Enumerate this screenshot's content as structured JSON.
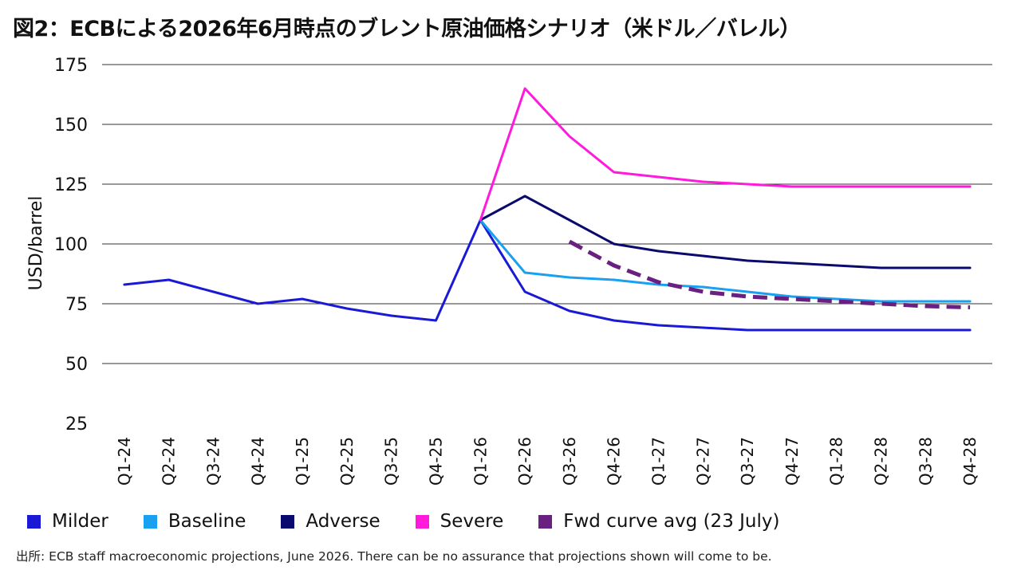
{
  "title": "図2：ECBによる2026年6月時点のブレント原油価格シナリオ（米ドル／バレル）",
  "source": "出所: ECB staff macroeconomic projections, June 2026. There can be no assurance that projections shown will come to be.",
  "colors": {
    "milder": "#1a1ad6",
    "baseline": "#1aa0f0",
    "adverse": "#0a0a6e",
    "severe": "#ff1adc",
    "fwd": "#6a2080",
    "grid": "#333333"
  },
  "chart_data": {
    "type": "line",
    "ylabel": "USD/barrel",
    "xlabel": "",
    "ylim": [
      25,
      175
    ],
    "yticks": [
      "175",
      "150",
      "125",
      "100",
      "75",
      "50",
      "25"
    ],
    "grid": "horizontal",
    "legend_position": "bottom",
    "categories": [
      "Q1-24",
      "Q2-24",
      "Q3-24",
      "Q4-24",
      "Q1-25",
      "Q2-25",
      "Q3-25",
      "Q4-25",
      "Q1-26",
      "Q2-26",
      "Q3-26",
      "Q4-26",
      "Q1-27",
      "Q2-27",
      "Q3-27",
      "Q4-27",
      "Q1-28",
      "Q2-28",
      "Q3-28",
      "Q4-28"
    ],
    "series": [
      {
        "name": "Milder",
        "color": "#1a1ad6",
        "dash": false,
        "values": [
          83,
          85,
          80,
          75,
          77,
          73,
          70,
          68,
          110,
          80,
          72,
          68,
          66,
          65,
          64,
          64,
          64,
          64,
          64,
          64
        ]
      },
      {
        "name": "Baseline",
        "color": "#1aa0f0",
        "dash": false,
        "values": [
          null,
          null,
          null,
          null,
          null,
          null,
          null,
          null,
          110,
          88,
          86,
          85,
          83,
          82,
          80,
          78,
          77,
          76,
          76,
          76
        ]
      },
      {
        "name": "Adverse",
        "color": "#0a0a6e",
        "dash": false,
        "values": [
          null,
          null,
          null,
          null,
          null,
          null,
          null,
          null,
          110,
          120,
          110,
          100,
          97,
          95,
          93,
          92,
          91,
          90,
          90,
          90
        ]
      },
      {
        "name": "Severe",
        "color": "#ff1adc",
        "dash": false,
        "values": [
          null,
          null,
          null,
          null,
          null,
          null,
          null,
          null,
          110,
          165,
          145,
          130,
          128,
          126,
          125,
          124,
          124,
          124,
          124,
          124
        ]
      },
      {
        "name": "Fwd curve avg (23 July)",
        "color": "#6a2080",
        "dash": true,
        "values": [
          null,
          null,
          null,
          null,
          null,
          null,
          null,
          null,
          null,
          null,
          101,
          91,
          84,
          80,
          78,
          77,
          76,
          75,
          74,
          73.5
        ]
      }
    ]
  }
}
